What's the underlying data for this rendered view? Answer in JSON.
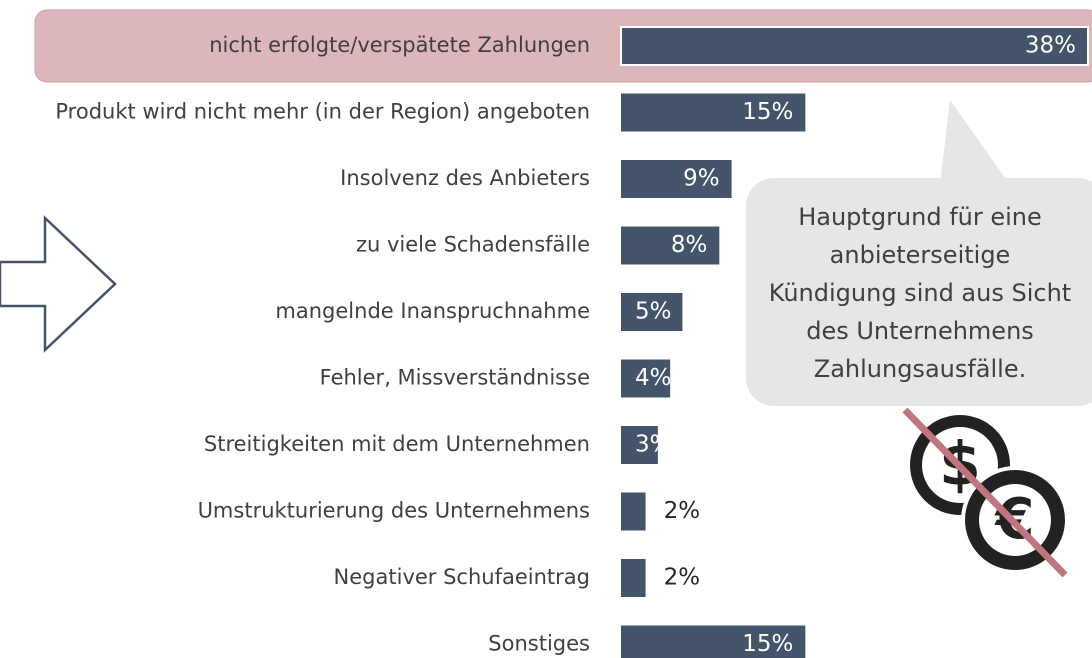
{
  "chart_data": {
    "type": "bar",
    "orientation": "horizontal",
    "categories": [
      "nicht erfolgte/verspätete Zahlungen",
      "Produkt wird nicht mehr (in der Region) angeboten",
      "Insolvenz des Anbieters",
      "zu viele Schadensfälle",
      "mangelnde Inanspruchnahme",
      "Fehler, Missverständnisse",
      "Streitigkeiten mit dem Unternehmen",
      "Umstrukturierung des Unternehmens",
      "Negativer Schufaeintrag",
      "Sonstiges"
    ],
    "values": [
      38,
      15,
      9,
      8,
      5,
      4,
      3,
      2,
      2,
      15
    ],
    "value_labels": [
      "38%",
      "15%",
      "9%",
      "8%",
      "5%",
      "4%",
      "3%",
      "2%",
      "2%",
      "15%"
    ],
    "color": "#44546a",
    "highlight_color": "#dcb6bb",
    "annotation": [
      "Hauptgrund für eine",
      "anbieterseitige",
      "Kündigung sind aus Sicht",
      "des Unternehmens",
      "Zahlungsausfälle."
    ],
    "icon_symbols": [
      "$",
      "€"
    ]
  }
}
